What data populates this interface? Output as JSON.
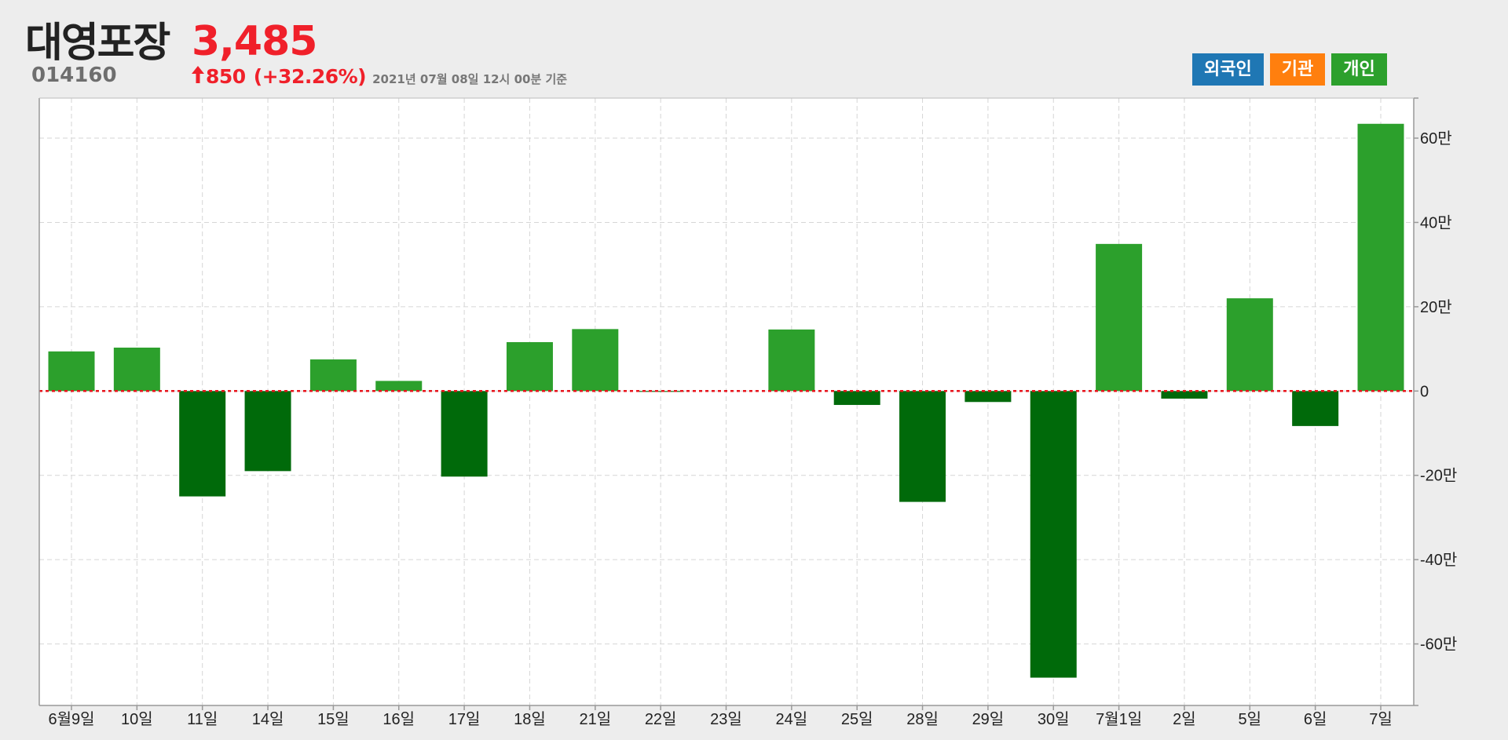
{
  "header": {
    "name": "대영포장",
    "price": "3,485",
    "code": "014160",
    "change": "850",
    "change_pct": "(+32.26%)",
    "as_of": "2021년 07월 08일 12시 00분 기준",
    "up_color": "#f0202a"
  },
  "legend": {
    "items": [
      {
        "label": "외국인",
        "color": "#1f77b4"
      },
      {
        "label": "기관",
        "color": "#ff7f0e"
      },
      {
        "label": "개인",
        "color": "#2ca02c"
      }
    ]
  },
  "chart_data": {
    "type": "bar",
    "categories": [
      "6월9일",
      "10일",
      "11일",
      "14일",
      "15일",
      "16일",
      "17일",
      "18일",
      "21일",
      "22일",
      "23일",
      "24일",
      "25일",
      "28일",
      "29일",
      "30일",
      "7월1일",
      "2일",
      "5일",
      "6일",
      "7일"
    ],
    "series": [
      {
        "values": [
          9.4,
          10.3,
          -25.0,
          -19.0,
          7.5,
          2.4,
          -20.3,
          11.6,
          14.7,
          -0.2,
          0,
          14.6,
          -3.3,
          -26.3,
          -2.6,
          -68.0,
          34.9,
          -1.8,
          22.0,
          -8.3,
          63.4
        ]
      }
    ],
    "unit": "만",
    "y_ticks": [
      -60,
      -40,
      -20,
      0,
      20,
      40,
      60
    ],
    "y_tick_labels": [
      "-60만",
      "-40만",
      "-20만",
      "0",
      "20만",
      "40만",
      "60만"
    ],
    "ylim": [
      -74.6,
      69.5
    ],
    "positive_color": "#2ca02c",
    "negative_color": "#006a0a",
    "zero_line_color": "#e8141c",
    "grid": true,
    "xlabel": "",
    "ylabel": ""
  }
}
